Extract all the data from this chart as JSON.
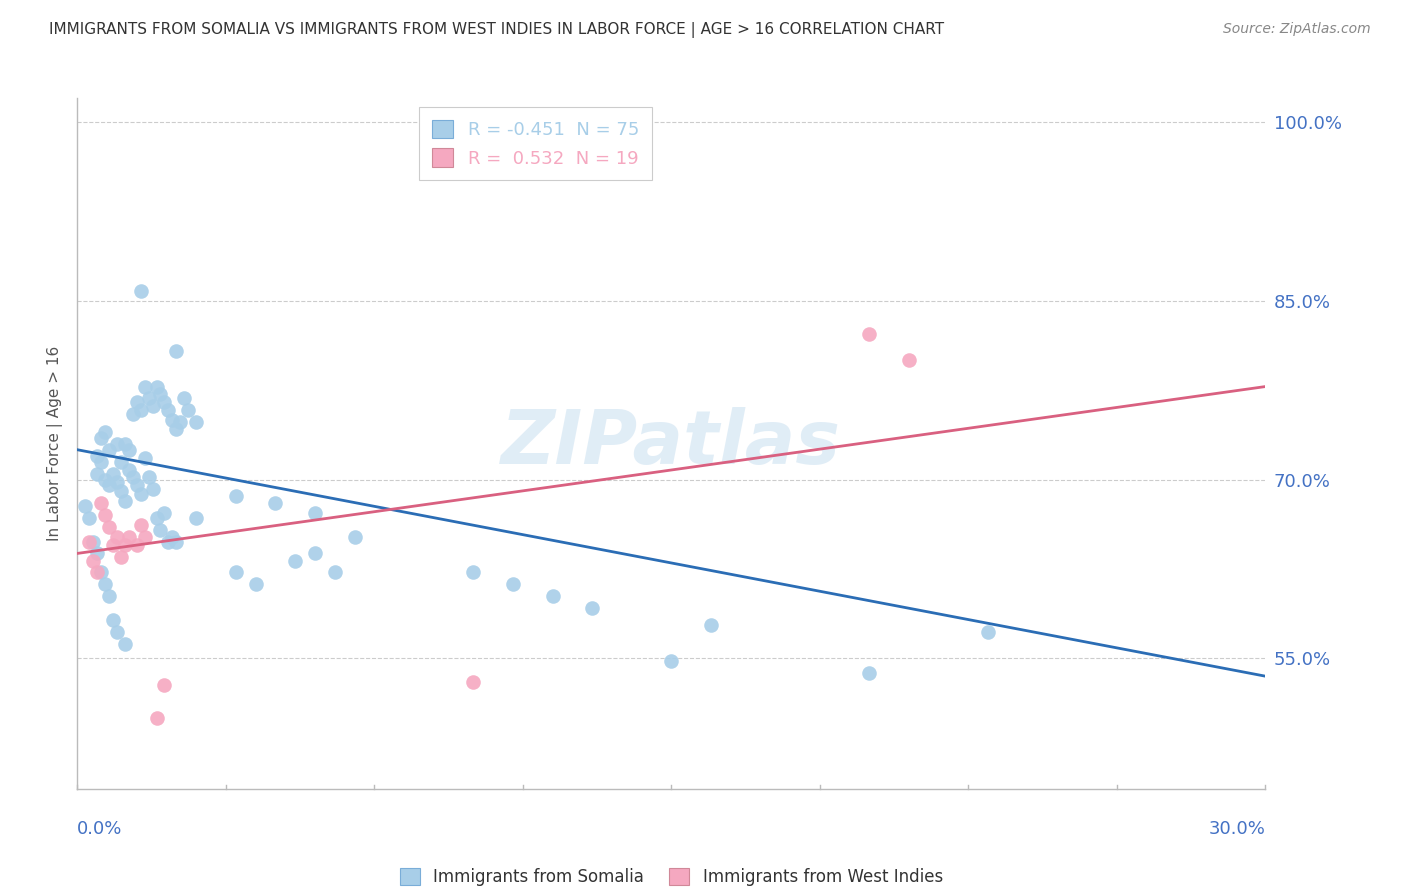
{
  "title": "IMMIGRANTS FROM SOMALIA VS IMMIGRANTS FROM WEST INDIES IN LABOR FORCE | AGE > 16 CORRELATION CHART",
  "source": "Source: ZipAtlas.com",
  "ylabel": "In Labor Force | Age > 16",
  "somalia_label": "Immigrants from Somalia",
  "west_indies_label": "Immigrants from West Indies",
  "somalia_legend": "R = -0.451  N = 75",
  "west_indies_legend": "R =  0.532  N = 19",
  "somalia_color": "#A8CEE8",
  "west_indies_color": "#F5A8C0",
  "somalia_line_color": "#2B6DB5",
  "west_indies_line_color": "#D96080",
  "somalia_line": [
    0.0,
    0.725,
    0.3,
    0.535
  ],
  "west_indies_line": [
    0.0,
    0.638,
    0.3,
    0.778
  ],
  "xlim": [
    0.0,
    0.3
  ],
  "ylim": [
    0.44,
    1.02
  ],
  "ytick_vals": [
    0.55,
    0.7,
    0.85,
    1.0
  ],
  "ytick_labels": [
    "55.0%",
    "70.0%",
    "85.0%",
    "100.0%"
  ],
  "watermark": "ZIPatlas",
  "somalia_points": [
    [
      0.005,
      0.72
    ],
    [
      0.006,
      0.735
    ],
    [
      0.007,
      0.74
    ],
    [
      0.008,
      0.725
    ],
    [
      0.01,
      0.73
    ],
    [
      0.011,
      0.715
    ],
    [
      0.012,
      0.73
    ],
    [
      0.013,
      0.725
    ],
    [
      0.014,
      0.755
    ],
    [
      0.015,
      0.765
    ],
    [
      0.016,
      0.758
    ],
    [
      0.017,
      0.778
    ],
    [
      0.018,
      0.768
    ],
    [
      0.019,
      0.762
    ],
    [
      0.02,
      0.778
    ],
    [
      0.021,
      0.772
    ],
    [
      0.022,
      0.765
    ],
    [
      0.023,
      0.758
    ],
    [
      0.024,
      0.75
    ],
    [
      0.025,
      0.742
    ],
    [
      0.026,
      0.748
    ],
    [
      0.027,
      0.768
    ],
    [
      0.028,
      0.758
    ],
    [
      0.03,
      0.748
    ],
    [
      0.005,
      0.705
    ],
    [
      0.006,
      0.715
    ],
    [
      0.007,
      0.7
    ],
    [
      0.008,
      0.695
    ],
    [
      0.009,
      0.705
    ],
    [
      0.01,
      0.698
    ],
    [
      0.011,
      0.69
    ],
    [
      0.012,
      0.682
    ],
    [
      0.013,
      0.708
    ],
    [
      0.014,
      0.702
    ],
    [
      0.015,
      0.695
    ],
    [
      0.016,
      0.688
    ],
    [
      0.017,
      0.718
    ],
    [
      0.018,
      0.702
    ],
    [
      0.019,
      0.692
    ],
    [
      0.02,
      0.668
    ],
    [
      0.021,
      0.658
    ],
    [
      0.022,
      0.672
    ],
    [
      0.023,
      0.648
    ],
    [
      0.024,
      0.652
    ],
    [
      0.025,
      0.648
    ],
    [
      0.03,
      0.668
    ],
    [
      0.04,
      0.686
    ],
    [
      0.05,
      0.68
    ],
    [
      0.06,
      0.672
    ],
    [
      0.07,
      0.652
    ],
    [
      0.004,
      0.648
    ],
    [
      0.003,
      0.668
    ],
    [
      0.002,
      0.678
    ],
    [
      0.055,
      0.632
    ],
    [
      0.06,
      0.638
    ],
    [
      0.065,
      0.622
    ],
    [
      0.1,
      0.622
    ],
    [
      0.11,
      0.612
    ],
    [
      0.12,
      0.602
    ],
    [
      0.13,
      0.592
    ],
    [
      0.016,
      0.858
    ],
    [
      0.025,
      0.808
    ],
    [
      0.005,
      0.638
    ],
    [
      0.006,
      0.622
    ],
    [
      0.007,
      0.612
    ],
    [
      0.008,
      0.602
    ],
    [
      0.009,
      0.582
    ],
    [
      0.01,
      0.572
    ],
    [
      0.012,
      0.562
    ],
    [
      0.23,
      0.572
    ],
    [
      0.04,
      0.622
    ],
    [
      0.045,
      0.612
    ],
    [
      0.16,
      0.578
    ],
    [
      0.2,
      0.538
    ],
    [
      0.15,
      0.548
    ]
  ],
  "west_indies_points": [
    [
      0.003,
      0.648
    ],
    [
      0.004,
      0.632
    ],
    [
      0.005,
      0.622
    ],
    [
      0.006,
      0.68
    ],
    [
      0.007,
      0.67
    ],
    [
      0.008,
      0.66
    ],
    [
      0.009,
      0.645
    ],
    [
      0.01,
      0.652
    ],
    [
      0.011,
      0.635
    ],
    [
      0.012,
      0.645
    ],
    [
      0.013,
      0.652
    ],
    [
      0.015,
      0.645
    ],
    [
      0.016,
      0.662
    ],
    [
      0.017,
      0.652
    ],
    [
      0.02,
      0.5
    ],
    [
      0.022,
      0.528
    ],
    [
      0.2,
      0.822
    ],
    [
      0.21,
      0.8
    ],
    [
      0.1,
      0.53
    ]
  ],
  "background_color": "#FFFFFF",
  "grid_color": "#CCCCCC",
  "axis_color": "#BBBBBB",
  "title_color": "#333333",
  "tick_label_color": "#4472C4",
  "source_color": "#888888"
}
